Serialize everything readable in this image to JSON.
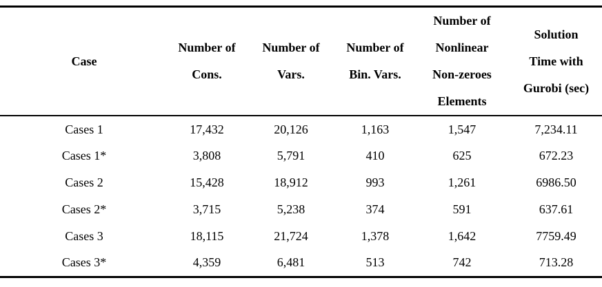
{
  "table": {
    "header": {
      "case": {
        "lines": [
          "Case"
        ]
      },
      "cons": {
        "lines": [
          "Number of",
          "Cons."
        ]
      },
      "vars": {
        "lines": [
          "Number of",
          "Vars."
        ]
      },
      "bin": {
        "lines": [
          "Number of",
          "Bin. Vars."
        ]
      },
      "nonlinear": {
        "lines": [
          "Number of",
          "Nonlinear",
          "Non-zeroes",
          "Elements"
        ]
      },
      "solution": {
        "lines": [
          "Solution",
          "Time with",
          "Gurobi (sec)"
        ]
      }
    },
    "rows": [
      {
        "case": "Cases 1",
        "cons": "17,432",
        "vars": "20,126",
        "bin": "1,163",
        "nonlinear": "1,547",
        "solution": "7,234.11"
      },
      {
        "case": "Cases 1*",
        "cons": "3,808",
        "vars": "5,791",
        "bin": "410",
        "nonlinear": "625",
        "solution": "672.23"
      },
      {
        "case": "Cases 2",
        "cons": "15,428",
        "vars": "18,912",
        "bin": "993",
        "nonlinear": "1,261",
        "solution": "6986.50"
      },
      {
        "case": "Cases 2*",
        "cons": "3,715",
        "vars": "5,238",
        "bin": "374",
        "nonlinear": "591",
        "solution": "637.61"
      },
      {
        "case": "Cases 3",
        "cons": "18,115",
        "vars": "21,724",
        "bin": "1,378",
        "nonlinear": "1,642",
        "solution": "7759.49"
      },
      {
        "case": "Cases 3*",
        "cons": "4,359",
        "vars": "6,481",
        "bin": "513",
        "nonlinear": "742",
        "solution": "713.28"
      }
    ],
    "colors": {
      "text": "#000000",
      "background": "#ffffff",
      "rule": "#000000"
    }
  }
}
